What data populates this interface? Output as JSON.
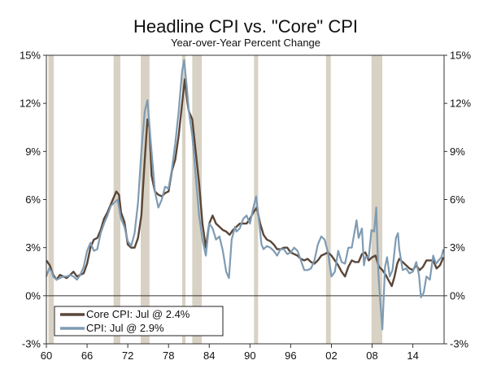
{
  "chart_data": {
    "type": "line",
    "title": "Headline CPI vs. \"Core\" CPI",
    "subtitle": "Year-over-Year Percent Change",
    "xlabel": "",
    "ylabel": "",
    "x_range": [
      1960,
      2018.6
    ],
    "ylim": [
      -3,
      15
    ],
    "y_ticks": [
      "15%",
      "12%",
      "9%",
      "6%",
      "3%",
      "0%",
      "-3%"
    ],
    "y_tick_values": [
      15,
      12,
      9,
      6,
      3,
      0,
      -3
    ],
    "x_ticks": [
      "60",
      "66",
      "72",
      "78",
      "84",
      "90",
      "96",
      "02",
      "08",
      "14"
    ],
    "x_tick_values": [
      1960,
      1966,
      1972,
      1978,
      1984,
      1990,
      1996,
      2002,
      2008,
      2014
    ],
    "legend_position": "bottom-left",
    "colors": {
      "core": "#5a4638",
      "cpi": "#7f9bb3",
      "recession": "#d8d2c4"
    },
    "recessions": [
      [
        1960.3,
        1961.1
      ],
      [
        1969.9,
        1970.9
      ],
      [
        1973.9,
        1975.2
      ],
      [
        1980.0,
        1980.5
      ],
      [
        1981.5,
        1982.9
      ],
      [
        1990.6,
        1991.2
      ],
      [
        2001.2,
        2001.9
      ],
      [
        2007.9,
        2009.5
      ]
    ],
    "series": [
      {
        "name": "Core CPI: Jul @ 2.4%",
        "key": "core",
        "points": [
          [
            1960,
            2.2
          ],
          [
            1960.5,
            1.9
          ],
          [
            1961,
            1.3
          ],
          [
            1961.5,
            1.0
          ],
          [
            1962,
            1.3
          ],
          [
            1962.5,
            1.2
          ],
          [
            1963,
            1.1
          ],
          [
            1963.5,
            1.3
          ],
          [
            1964,
            1.5
          ],
          [
            1964.5,
            1.2
          ],
          [
            1965,
            1.3
          ],
          [
            1965.5,
            1.4
          ],
          [
            1966,
            2.0
          ],
          [
            1966.5,
            3.0
          ],
          [
            1967,
            3.5
          ],
          [
            1967.5,
            3.6
          ],
          [
            1968,
            4.1
          ],
          [
            1968.5,
            4.8
          ],
          [
            1969,
            5.2
          ],
          [
            1969.5,
            5.7
          ],
          [
            1970,
            6.2
          ],
          [
            1970.3,
            6.5
          ],
          [
            1970.7,
            6.3
          ],
          [
            1971,
            5.2
          ],
          [
            1971.5,
            4.6
          ],
          [
            1972,
            3.2
          ],
          [
            1972.5,
            3.0
          ],
          [
            1973,
            3.0
          ],
          [
            1973.5,
            3.6
          ],
          [
            1974,
            5.0
          ],
          [
            1974.5,
            8.5
          ],
          [
            1974.9,
            11.0
          ],
          [
            1975.2,
            10.5
          ],
          [
            1975.5,
            7.5
          ],
          [
            1976,
            6.5
          ],
          [
            1976.5,
            6.3
          ],
          [
            1977,
            6.2
          ],
          [
            1977.5,
            6.4
          ],
          [
            1978,
            6.5
          ],
          [
            1978.5,
            7.8
          ],
          [
            1979,
            8.5
          ],
          [
            1979.5,
            10.0
          ],
          [
            1980,
            12.0
          ],
          [
            1980.4,
            13.5
          ],
          [
            1980.8,
            12.0
          ],
          [
            1981,
            11.5
          ],
          [
            1981.5,
            11.0
          ],
          [
            1982,
            9.0
          ],
          [
            1982.5,
            7.0
          ],
          [
            1983,
            4.5
          ],
          [
            1983.5,
            3.0
          ],
          [
            1984,
            4.5
          ],
          [
            1984.5,
            5.0
          ],
          [
            1985,
            4.5
          ],
          [
            1985.5,
            4.3
          ],
          [
            1986,
            4.1
          ],
          [
            1986.5,
            4.0
          ],
          [
            1987,
            3.8
          ],
          [
            1987.5,
            4.1
          ],
          [
            1988,
            4.3
          ],
          [
            1988.5,
            4.5
          ],
          [
            1989,
            4.5
          ],
          [
            1989.5,
            4.5
          ],
          [
            1990,
            4.8
          ],
          [
            1990.5,
            5.2
          ],
          [
            1991,
            5.5
          ],
          [
            1991.5,
            4.5
          ],
          [
            1992,
            3.8
          ],
          [
            1992.5,
            3.5
          ],
          [
            1993,
            3.4
          ],
          [
            1993.5,
            3.2
          ],
          [
            1994,
            2.9
          ],
          [
            1994.5,
            2.9
          ],
          [
            1995,
            3.0
          ],
          [
            1995.5,
            3.0
          ],
          [
            1996,
            2.7
          ],
          [
            1996.5,
            2.6
          ],
          [
            1997,
            2.5
          ],
          [
            1997.5,
            2.3
          ],
          [
            1998,
            2.2
          ],
          [
            1998.5,
            2.3
          ],
          [
            1999,
            2.1
          ],
          [
            1999.5,
            2.0
          ],
          [
            2000,
            2.2
          ],
          [
            2000.5,
            2.5
          ],
          [
            2001,
            2.6
          ],
          [
            2001.5,
            2.7
          ],
          [
            2002,
            2.5
          ],
          [
            2002.5,
            2.2
          ],
          [
            2003,
            1.9
          ],
          [
            2003.5,
            1.5
          ],
          [
            2004,
            1.2
          ],
          [
            2004.5,
            1.8
          ],
          [
            2005,
            2.2
          ],
          [
            2005.5,
            2.1
          ],
          [
            2006,
            2.1
          ],
          [
            2006.5,
            2.6
          ],
          [
            2007,
            2.7
          ],
          [
            2007.5,
            2.2
          ],
          [
            2008,
            2.4
          ],
          [
            2008.5,
            2.5
          ],
          [
            2009,
            1.8
          ],
          [
            2009.5,
            1.6
          ],
          [
            2010,
            1.3
          ],
          [
            2010.5,
            0.9
          ],
          [
            2010.9,
            0.6
          ],
          [
            2011.3,
            1.2
          ],
          [
            2011.7,
            2.0
          ],
          [
            2012,
            2.3
          ],
          [
            2012.5,
            2.1
          ],
          [
            2013,
            1.9
          ],
          [
            2013.5,
            1.7
          ],
          [
            2014,
            1.6
          ],
          [
            2014.5,
            1.9
          ],
          [
            2015,
            1.6
          ],
          [
            2015.5,
            1.8
          ],
          [
            2016,
            2.2
          ],
          [
            2016.5,
            2.2
          ],
          [
            2017,
            2.2
          ],
          [
            2017.5,
            1.7
          ],
          [
            2018,
            1.9
          ],
          [
            2018.5,
            2.4
          ]
        ]
      },
      {
        "name": "CPI: Jul @ 2.9%",
        "key": "cpi",
        "points": [
          [
            1960,
            1.2
          ],
          [
            1960.4,
            1.7
          ],
          [
            1960.8,
            1.5
          ],
          [
            1961,
            1.2
          ],
          [
            1961.5,
            1.0
          ],
          [
            1962,
            1.1
          ],
          [
            1962.5,
            1.2
          ],
          [
            1963,
            1.2
          ],
          [
            1963.5,
            1.3
          ],
          [
            1964,
            1.2
          ],
          [
            1964.5,
            1.0
          ],
          [
            1965,
            1.3
          ],
          [
            1965.5,
            1.8
          ],
          [
            1966,
            2.8
          ],
          [
            1966.5,
            3.3
          ],
          [
            1967,
            2.8
          ],
          [
            1967.5,
            2.9
          ],
          [
            1968,
            3.9
          ],
          [
            1968.5,
            4.5
          ],
          [
            1969,
            5.0
          ],
          [
            1969.5,
            5.6
          ],
          [
            1970,
            5.8
          ],
          [
            1970.5,
            6.0
          ],
          [
            1971,
            4.8
          ],
          [
            1971.5,
            4.3
          ],
          [
            1972,
            3.4
          ],
          [
            1972.5,
            3.1
          ],
          [
            1973,
            3.9
          ],
          [
            1973.5,
            5.8
          ],
          [
            1974,
            9.0
          ],
          [
            1974.5,
            11.5
          ],
          [
            1974.9,
            12.2
          ],
          [
            1975.3,
            10.0
          ],
          [
            1975.7,
            8.0
          ],
          [
            1976,
            6.5
          ],
          [
            1976.5,
            5.5
          ],
          [
            1977,
            6.0
          ],
          [
            1977.5,
            6.8
          ],
          [
            1978,
            6.7
          ],
          [
            1978.5,
            7.9
          ],
          [
            1979,
            9.5
          ],
          [
            1979.5,
            11.5
          ],
          [
            1980,
            14.0
          ],
          [
            1980.3,
            14.7
          ],
          [
            1980.7,
            13.0
          ],
          [
            1981,
            11.5
          ],
          [
            1981.5,
            10.0
          ],
          [
            1982,
            7.5
          ],
          [
            1982.5,
            5.0
          ],
          [
            1983,
            3.5
          ],
          [
            1983.5,
            2.5
          ],
          [
            1984,
            4.5
          ],
          [
            1984.5,
            4.2
          ],
          [
            1985,
            3.5
          ],
          [
            1985.5,
            3.7
          ],
          [
            1986,
            2.8
          ],
          [
            1986.5,
            1.5
          ],
          [
            1986.9,
            1.1
          ],
          [
            1987.3,
            3.5
          ],
          [
            1987.8,
            4.3
          ],
          [
            1988,
            4.0
          ],
          [
            1988.5,
            4.2
          ],
          [
            1989,
            4.8
          ],
          [
            1989.5,
            5.0
          ],
          [
            1990,
            4.5
          ],
          [
            1990.5,
            5.5
          ],
          [
            1990.9,
            6.2
          ],
          [
            1991.3,
            4.8
          ],
          [
            1991.7,
            3.2
          ],
          [
            1992,
            2.9
          ],
          [
            1992.5,
            3.1
          ],
          [
            1993,
            3.0
          ],
          [
            1993.5,
            2.8
          ],
          [
            1994,
            2.5
          ],
          [
            1994.5,
            2.9
          ],
          [
            1995,
            2.9
          ],
          [
            1995.5,
            2.6
          ],
          [
            1996,
            2.7
          ],
          [
            1996.5,
            3.0
          ],
          [
            1997,
            2.8
          ],
          [
            1997.5,
            2.2
          ],
          [
            1998,
            1.6
          ],
          [
            1998.5,
            1.6
          ],
          [
            1999,
            1.7
          ],
          [
            1999.5,
            2.2
          ],
          [
            2000,
            3.2
          ],
          [
            2000.5,
            3.7
          ],
          [
            2001,
            3.5
          ],
          [
            2001.5,
            2.7
          ],
          [
            2002,
            1.2
          ],
          [
            2002.5,
            1.5
          ],
          [
            2003,
            2.8
          ],
          [
            2003.5,
            2.1
          ],
          [
            2004,
            2.0
          ],
          [
            2004.5,
            3.0
          ],
          [
            2005,
            3.0
          ],
          [
            2005.7,
            4.7
          ],
          [
            2006,
            3.6
          ],
          [
            2006.5,
            4.2
          ],
          [
            2006.8,
            1.9
          ],
          [
            2007,
            2.4
          ],
          [
            2007.5,
            2.4
          ],
          [
            2007.9,
            4.1
          ],
          [
            2008.3,
            4.0
          ],
          [
            2008.6,
            5.5
          ],
          [
            2008.9,
            1.5
          ],
          [
            2009.2,
            -0.4
          ],
          [
            2009.5,
            -2.1
          ],
          [
            2009.9,
            1.8
          ],
          [
            2010.2,
            2.4
          ],
          [
            2010.6,
            1.2
          ],
          [
            2011,
            1.6
          ],
          [
            2011.5,
            3.6
          ],
          [
            2011.8,
            3.9
          ],
          [
            2012,
            2.9
          ],
          [
            2012.5,
            1.6
          ],
          [
            2013,
            1.7
          ],
          [
            2013.5,
            1.4
          ],
          [
            2014,
            1.5
          ],
          [
            2014.5,
            2.1
          ],
          [
            2014.9,
            1.3
          ],
          [
            2015.2,
            -0.1
          ],
          [
            2015.6,
            0.2
          ],
          [
            2016,
            1.2
          ],
          [
            2016.5,
            1.0
          ],
          [
            2017,
            2.5
          ],
          [
            2017.4,
            2.0
          ],
          [
            2017.8,
            2.2
          ],
          [
            2018.2,
            2.4
          ],
          [
            2018.5,
            2.9
          ]
        ]
      }
    ]
  }
}
